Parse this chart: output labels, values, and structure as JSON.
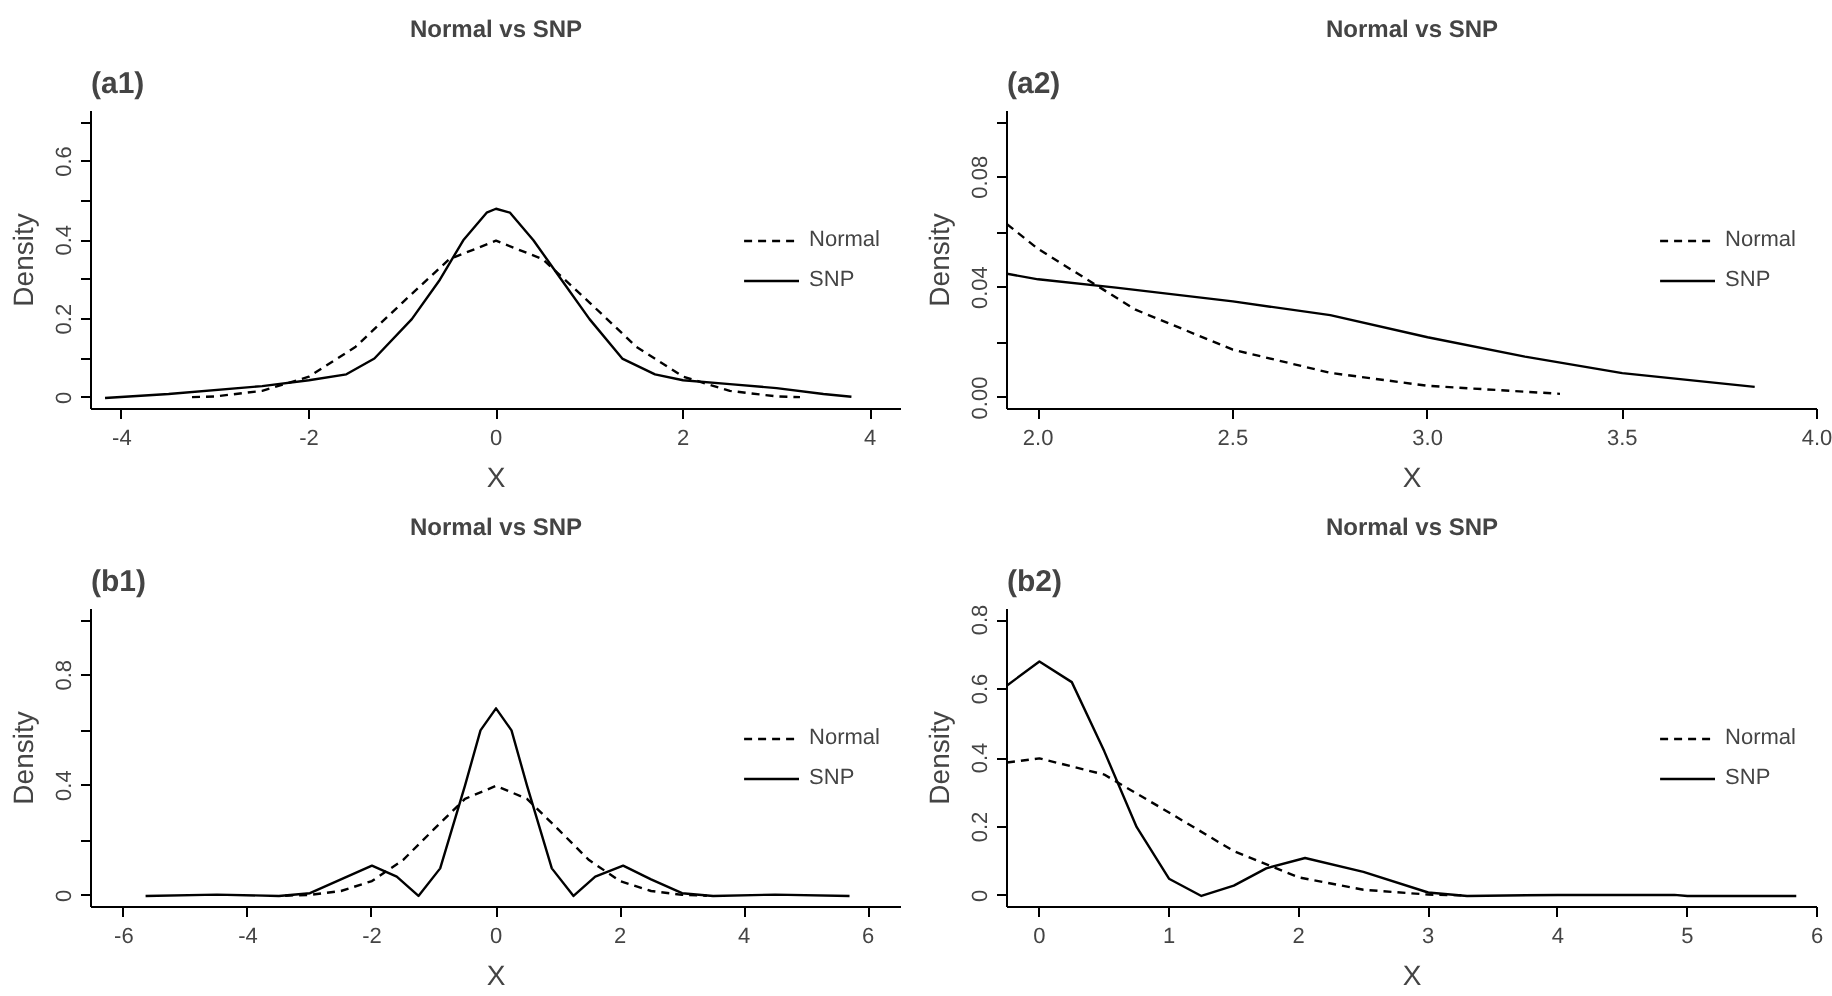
{
  "chart_data": [
    {
      "type": "line",
      "title": "Normal vs SNP",
      "annotations": [
        "(a1)"
      ],
      "xlabel": "X",
      "ylabel": "Density",
      "xlim": [
        -4.33,
        4.33
      ],
      "ylim": [
        -0.028,
        0.728
      ],
      "xticks": [
        -4,
        -2,
        0,
        2,
        4
      ],
      "yticks": [
        0,
        {
          "value": 0.1,
          "label": null
        },
        0.2,
        {
          "value": 0.3,
          "label": null
        },
        0.4,
        {
          "value": 0.5,
          "label": null
        },
        0.6,
        {
          "value": 0.7,
          "label": null
        }
      ],
      "legend": "right",
      "grid": false,
      "series": [
        {
          "name": "Normal",
          "color": "#000000",
          "line_style": "dashed",
          "x": [
            -3.25,
            -3,
            -2.5,
            -2,
            -1.5,
            -1,
            -0.5,
            0,
            0.5,
            1,
            1.5,
            2,
            2.5,
            3,
            3.25
          ],
          "values": [
            0.002,
            0.004,
            0.018,
            0.054,
            0.13,
            0.242,
            0.352,
            0.399,
            0.352,
            0.242,
            0.13,
            0.054,
            0.018,
            0.004,
            0.002
          ]
        },
        {
          "name": "SNP",
          "color": "#000000",
          "line_style": "solid",
          "x": [
            -4.18,
            -3.5,
            -2.5,
            -2,
            -1.6,
            -1.3,
            -0.9,
            -0.6,
            -0.35,
            -0.1,
            0,
            0.15,
            0.4,
            0.7,
            1.0,
            1.35,
            1.7,
            2.0,
            2.5,
            3.0,
            3.5,
            3.8
          ],
          "values": [
            0,
            0.01,
            0.03,
            0.045,
            0.06,
            0.1,
            0.2,
            0.3,
            0.4,
            0.47,
            0.48,
            0.47,
            0.4,
            0.3,
            0.2,
            0.1,
            0.06,
            0.045,
            0.035,
            0.025,
            0.01,
            0.003
          ]
        }
      ]
    },
    {
      "type": "line",
      "title": "Normal vs SNP",
      "annotations": [
        "(a2)"
      ],
      "xlabel": "X",
      "ylabel": "Density",
      "xlim": [
        1.92,
        4.0
      ],
      "ylim": [
        -0.004,
        0.104
      ],
      "xticks": [
        {
          "value": 2,
          "label": "2.0"
        },
        2.5,
        {
          "value": 3,
          "label": "3.0"
        },
        3.5,
        {
          "value": 4,
          "label": "4.0"
        }
      ],
      "yticks": [
        {
          "value": 0,
          "label": "0.00"
        },
        {
          "value": 0.02,
          "label": null
        },
        0.04,
        {
          "value": 0.06,
          "label": null
        },
        0.08,
        {
          "value": 0.1,
          "label": null
        }
      ],
      "legend": "right",
      "grid": false,
      "series": [
        {
          "name": "Normal",
          "color": "#000000",
          "line_style": "dashed",
          "x": [
            1.92,
            2.0,
            2.25,
            2.5,
            2.75,
            3.0,
            3.34
          ],
          "values": [
            0.063,
            0.054,
            0.032,
            0.0175,
            0.0091,
            0.0044,
            0.0015
          ]
        },
        {
          "name": "SNP",
          "color": "#000000",
          "line_style": "solid",
          "x": [
            1.92,
            2.0,
            2.2,
            2.5,
            2.75,
            3.0,
            3.25,
            3.5,
            3.84
          ],
          "values": [
            0.045,
            0.043,
            0.04,
            0.035,
            0.03,
            0.022,
            0.015,
            0.009,
            0.004
          ]
        }
      ]
    },
    {
      "type": "line",
      "title": "Normal vs SNP",
      "annotations": [
        "(b1)"
      ],
      "xlabel": "X",
      "ylabel": "Density",
      "xlim": [
        -6.53,
        6.53
      ],
      "ylim": [
        -0.04,
        1.04
      ],
      "xticks": [
        -6,
        -4,
        -2,
        0,
        2,
        4,
        6
      ],
      "yticks": [
        0,
        {
          "value": 0.2,
          "label": null
        },
        0.4,
        {
          "value": 0.6,
          "label": null
        },
        0.8,
        {
          "value": 1.0,
          "label": null
        }
      ],
      "legend": "right",
      "grid": false,
      "series": [
        {
          "name": "Normal",
          "color": "#000000",
          "line_style": "dashed",
          "x": [
            -3.4,
            -3,
            -2.5,
            -2,
            -1.5,
            -1,
            -0.5,
            0,
            0.5,
            1,
            1.5,
            2,
            2.5,
            3,
            3.4
          ],
          "values": [
            0.001,
            0.004,
            0.018,
            0.054,
            0.13,
            0.242,
            0.352,
            0.399,
            0.352,
            0.242,
            0.13,
            0.054,
            0.018,
            0.004,
            0.001
          ]
        },
        {
          "name": "SNP",
          "color": "#000000",
          "line_style": "solid",
          "x": [
            -5.65,
            -4.5,
            -3.5,
            -3,
            -2.5,
            -2,
            -1.6,
            -1.25,
            -0.9,
            -0.5,
            -0.25,
            0,
            0.25,
            0.5,
            0.9,
            1.25,
            1.6,
            2.05,
            2.5,
            3.0,
            3.5,
            4.5,
            5.7
          ],
          "values": [
            0,
            0.005,
            0,
            0.01,
            0.06,
            0.11,
            0.07,
            0,
            0.1,
            0.4,
            0.6,
            0.68,
            0.6,
            0.4,
            0.1,
            0,
            0.07,
            0.11,
            0.06,
            0.01,
            0,
            0.005,
            0
          ]
        }
      ]
    },
    {
      "type": "line",
      "title": "Normal vs SNP",
      "annotations": [
        "(b2)"
      ],
      "xlabel": "X",
      "ylabel": "Density",
      "xlim": [
        -0.25,
        6
      ],
      "ylim": [
        -0.032,
        0.832
      ],
      "xticks": [
        0,
        1,
        2,
        3,
        4,
        5,
        6
      ],
      "yticks": [
        0,
        0.2,
        0.4,
        0.6,
        0.8
      ],
      "legend": "right",
      "grid": false,
      "series": [
        {
          "name": "Normal",
          "color": "#000000",
          "line_style": "dashed",
          "x": [
            -0.25,
            0,
            0.5,
            1.0,
            1.5,
            2.0,
            2.5,
            3.0,
            3.3
          ],
          "values": [
            0.387,
            0.399,
            0.352,
            0.242,
            0.13,
            0.054,
            0.018,
            0.004,
            0.0017
          ]
        },
        {
          "name": "SNP",
          "color": "#000000",
          "line_style": "solid",
          "x": [
            -0.25,
            0,
            0.25,
            0.5,
            0.75,
            1.0,
            1.25,
            1.5,
            1.75,
            2.05,
            2.5,
            3.0,
            3.3,
            4.0,
            4.9,
            5.0,
            5.84
          ],
          "values": [
            0.61,
            0.68,
            0.62,
            0.42,
            0.2,
            0.05,
            0,
            0.03,
            0.08,
            0.11,
            0.07,
            0.01,
            0,
            0.003,
            0.003,
            0,
            0
          ]
        }
      ]
    }
  ]
}
